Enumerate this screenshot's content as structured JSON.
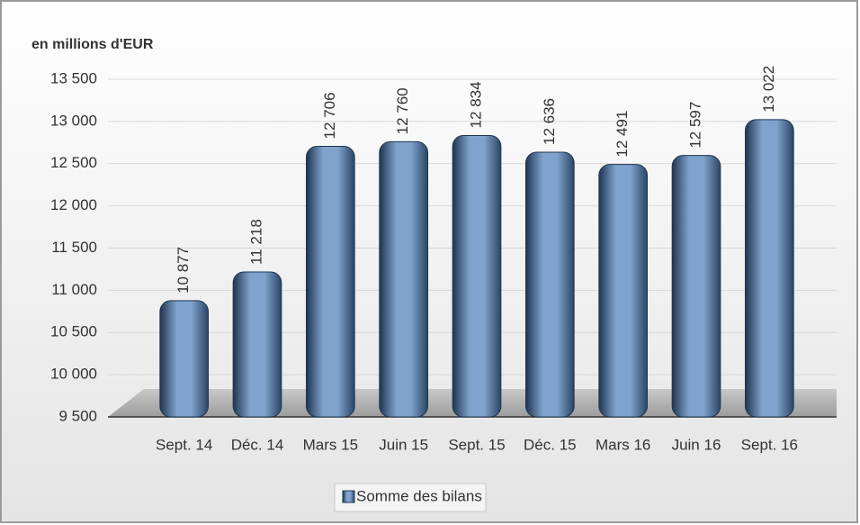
{
  "chart_data": {
    "type": "bar",
    "y_axis_label": "en millions d'EUR",
    "categories": [
      "Sept. 14",
      "Déc. 14",
      "Mars 15",
      "Juin 15",
      "Sept. 15",
      "Déc. 15",
      "Mars 16",
      "Juin 16",
      "Sept. 16"
    ],
    "series": [
      {
        "name": "Somme des bilans",
        "color": "#7fa3cc",
        "values": [
          10877,
          11218,
          12706,
          12760,
          12834,
          12636,
          12491,
          12597,
          13022
        ],
        "value_labels": [
          "10 877",
          "11 218",
          "12 706",
          "12 760",
          "12 834",
          "12 636",
          "12 491",
          "12 597",
          "13 022"
        ]
      }
    ],
    "ylim": [
      9500,
      13500
    ],
    "yticks": [
      {
        "value": 9500,
        "label": "9 500"
      },
      {
        "value": 10000,
        "label": "10 000"
      },
      {
        "value": 10500,
        "label": "10 500"
      },
      {
        "value": 11000,
        "label": "11 000"
      },
      {
        "value": 11500,
        "label": "11 500"
      },
      {
        "value": 12000,
        "label": "12 000"
      },
      {
        "value": 12500,
        "label": "12 500"
      },
      {
        "value": 13000,
        "label": "13 000"
      },
      {
        "value": 13500,
        "label": "13 500"
      }
    ],
    "grid": true,
    "legend": "bottom"
  }
}
